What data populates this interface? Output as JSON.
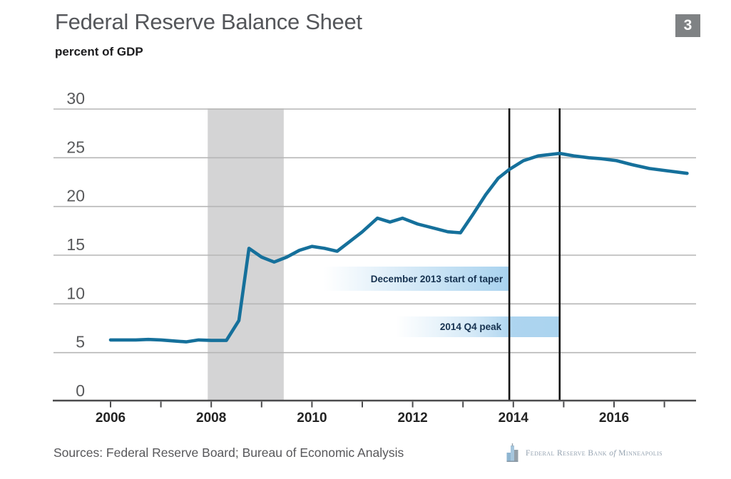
{
  "header": {
    "title": "Federal Reserve Balance Sheet",
    "subtitle": "percent of GDP",
    "slide_number": "3"
  },
  "footer": {
    "sources": "Sources: Federal Reserve Board; Bureau of Economic Analysis",
    "logo": {
      "bank": "Federal Reserve Bank",
      "of": "of",
      "city": "Minneapolis"
    }
  },
  "colors": {
    "line": "#15709b",
    "recession_band": "#d4d4d5",
    "gridline": "#b6b6b6",
    "axis": "#4b4b4d",
    "event_line": "#141414",
    "annotation_fill": "#a6d1ee",
    "annotation_text": "#163250",
    "badge_bg": "#7f8284",
    "tick_label": "#58595b",
    "x_label": "#232323"
  },
  "chart_data": {
    "type": "line",
    "title": "Federal Reserve Balance Sheet",
    "ylabel": "percent of GDP",
    "ylim": [
      0,
      30
    ],
    "yticks": [
      0,
      5,
      10,
      15,
      20,
      25,
      30
    ],
    "xlim": [
      2005.9,
      2017.6
    ],
    "xticks": [
      2006,
      2007,
      2008,
      2009,
      2010,
      2011,
      2012,
      2013,
      2014,
      2015,
      2016,
      2017
    ],
    "xtick_labels": [
      2006,
      2008,
      2010,
      2012,
      2014,
      2016
    ],
    "grid": "horizontal",
    "recession_band": {
      "from": 2007.93,
      "to": 2009.44
    },
    "event_lines": [
      {
        "x": 2013.92,
        "label": "December 2013 start of taper"
      },
      {
        "x": 2014.92,
        "label": "2014 Q4 peak"
      }
    ],
    "series": [
      {
        "name": "Federal Reserve balance sheet, percent of GDP",
        "points": [
          [
            2006.0,
            6.3
          ],
          [
            2006.25,
            6.3
          ],
          [
            2006.5,
            6.3
          ],
          [
            2006.75,
            6.35
          ],
          [
            2007.0,
            6.3
          ],
          [
            2007.25,
            6.2
          ],
          [
            2007.5,
            6.1
          ],
          [
            2007.75,
            6.3
          ],
          [
            2008.0,
            6.25
          ],
          [
            2008.3,
            6.25
          ],
          [
            2008.55,
            8.3
          ],
          [
            2008.75,
            15.7
          ],
          [
            2009.0,
            14.8
          ],
          [
            2009.25,
            14.3
          ],
          [
            2009.5,
            14.8
          ],
          [
            2009.75,
            15.5
          ],
          [
            2010.0,
            15.9
          ],
          [
            2010.25,
            15.7
          ],
          [
            2010.5,
            15.4
          ],
          [
            2010.75,
            16.4
          ],
          [
            2011.0,
            17.4
          ],
          [
            2011.3,
            18.8
          ],
          [
            2011.55,
            18.4
          ],
          [
            2011.8,
            18.8
          ],
          [
            2012.1,
            18.2
          ],
          [
            2012.4,
            17.8
          ],
          [
            2012.7,
            17.4
          ],
          [
            2012.95,
            17.3
          ],
          [
            2013.2,
            19.2
          ],
          [
            2013.45,
            21.2
          ],
          [
            2013.7,
            22.9
          ],
          [
            2013.92,
            23.8
          ],
          [
            2014.2,
            24.7
          ],
          [
            2014.5,
            25.2
          ],
          [
            2014.92,
            25.45
          ],
          [
            2015.2,
            25.2
          ],
          [
            2015.5,
            25.0
          ],
          [
            2015.75,
            24.9
          ],
          [
            2016.05,
            24.7
          ],
          [
            2016.35,
            24.3
          ],
          [
            2016.7,
            23.9
          ],
          [
            2017.0,
            23.7
          ],
          [
            2017.45,
            23.4
          ]
        ]
      }
    ]
  }
}
